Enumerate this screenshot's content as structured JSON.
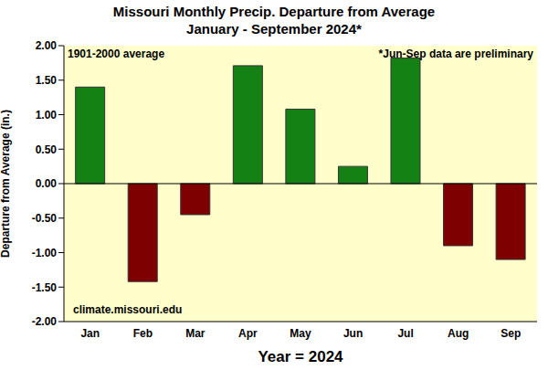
{
  "chart_data": {
    "type": "bar",
    "title": "Missouri Monthly Precip. Departure from Average",
    "subtitle": "January - September 2024*",
    "x_label": "Year = 2024",
    "y_label": "Departure from Average (in.)",
    "annotations": [
      "1901-2000 average",
      "*Jun-Sep data are preliminary",
      "climate.missouri.edu"
    ],
    "categories": [
      "Jan",
      "Feb",
      "Mar",
      "Apr",
      "May",
      "Jun",
      "Jul",
      "Aug",
      "Sep"
    ],
    "values": [
      1.4,
      -1.42,
      -0.45,
      1.71,
      1.08,
      0.25,
      1.82,
      -0.9,
      -1.1
    ],
    "colors": [
      "#138113",
      "#7f0000",
      "#7f0000",
      "#138113",
      "#138113",
      "#138113",
      "#138113",
      "#7f0000",
      "#7f0000"
    ],
    "ylim": [
      -2,
      2
    ],
    "yticks": [
      {
        "value": -2,
        "label": "-2.00"
      },
      {
        "value": -1.5,
        "label": "-1.50"
      },
      {
        "value": -1,
        "label": "-1.00"
      },
      {
        "value": -0.5,
        "label": "-0.50"
      },
      {
        "value": 0,
        "label": "0.00"
      },
      {
        "value": 0.5,
        "label": "0.50"
      },
      {
        "value": 1,
        "label": "1.00"
      },
      {
        "value": 1.5,
        "label": "1.50"
      },
      {
        "value": 2,
        "label": "2.00"
      }
    ],
    "grid": false
  }
}
